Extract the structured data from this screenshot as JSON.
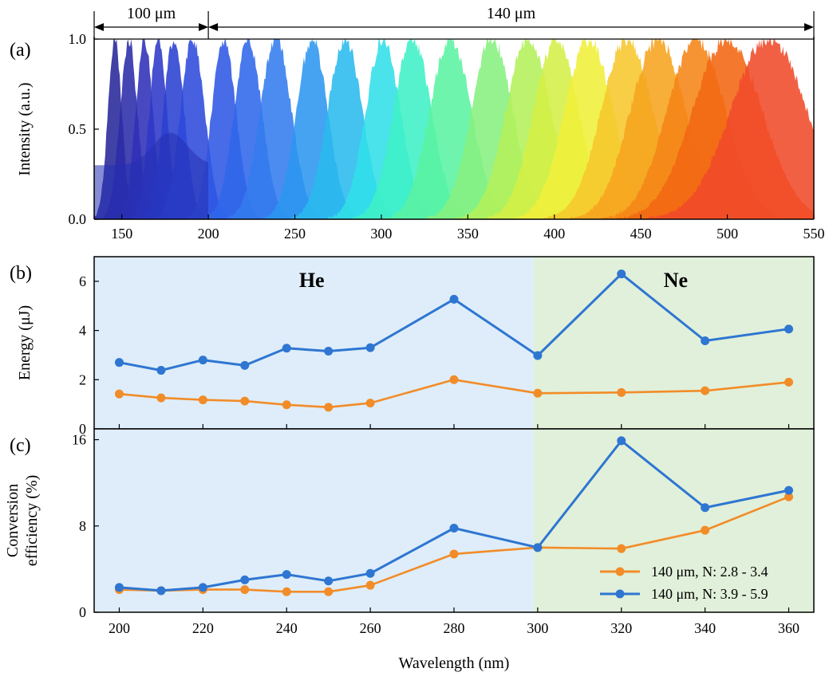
{
  "chart_data": [
    {
      "panel": "(a)",
      "type": "area",
      "ylabel": "Intensity (a.u.)",
      "xlim": [
        134,
        550
      ],
      "ylim": [
        0,
        1.0
      ],
      "xticks": [
        150,
        200,
        250,
        300,
        350,
        400,
        450,
        500,
        550
      ],
      "yticks": [
        "0.0",
        "0.5",
        "1.0"
      ],
      "annotations": [
        {
          "text": "100 μm",
          "from": 134,
          "to": 200
        },
        {
          "text": "140 μm",
          "from": 200,
          "to": 550
        }
      ],
      "peaks": [
        {
          "center": 146,
          "width": 4,
          "color": "#27279a"
        },
        {
          "center": 154,
          "width": 5,
          "color": "#2b2ba8"
        },
        {
          "center": 163,
          "width": 5,
          "color": "#2f30b8"
        },
        {
          "center": 171,
          "width": 5,
          "color": "#2e38c7"
        },
        {
          "center": 180,
          "width": 6,
          "color": "#2a40d2"
        },
        {
          "center": 191,
          "width": 7,
          "color": "#2e4adc"
        },
        {
          "center": 209,
          "width": 7,
          "color": "#2f56e4"
        },
        {
          "center": 223,
          "width": 8,
          "color": "#2f66ea"
        },
        {
          "center": 239,
          "width": 9,
          "color": "#337cee"
        },
        {
          "center": 260,
          "width": 9,
          "color": "#2b96f0"
        },
        {
          "center": 279,
          "width": 10,
          "color": "#2ab9ee"
        },
        {
          "center": 301,
          "width": 10,
          "color": "#31dfe8"
        },
        {
          "center": 318,
          "width": 11,
          "color": "#3ff0c6"
        },
        {
          "center": 340,
          "width": 12,
          "color": "#5af2a2"
        },
        {
          "center": 364,
          "width": 12,
          "color": "#86f080"
        },
        {
          "center": 385,
          "width": 13,
          "color": "#b3f05a"
        },
        {
          "center": 401,
          "width": 13,
          "color": "#d4ef45"
        },
        {
          "center": 420,
          "width": 14,
          "color": "#f0ef3a"
        },
        {
          "center": 442,
          "width": 15,
          "color": "#f6c72c"
        },
        {
          "center": 460,
          "width": 16,
          "color": "#f6a41f"
        },
        {
          "center": 482,
          "width": 17,
          "color": "#f58517"
        },
        {
          "center": 500,
          "width": 20,
          "color": "#f36612"
        },
        {
          "center": 524,
          "width": 22,
          "color": "#f04a2a"
        }
      ]
    },
    {
      "panel": "(b)",
      "type": "line",
      "ylabel": "Energy (μJ)",
      "xlim": [
        194,
        366
      ],
      "ylim": [
        0,
        7
      ],
      "yticks": [
        "0",
        "2",
        "4",
        "6"
      ],
      "regions": [
        {
          "label": "He",
          "from": 194,
          "to": 299,
          "color": "#deedf9"
        },
        {
          "label": "Ne",
          "from": 299,
          "to": 366,
          "color": "#e1f0da"
        }
      ],
      "x": [
        200,
        210,
        220,
        230,
        240,
        250,
        260,
        280,
        300,
        320,
        340,
        360
      ],
      "series": [
        {
          "name": "140 μm, N: 2.8 - 3.4",
          "color": "#f28c28",
          "values": [
            1.42,
            1.26,
            1.18,
            1.13,
            0.98,
            0.88,
            1.05,
            2.0,
            1.45,
            1.48,
            1.55,
            1.9
          ]
        },
        {
          "name": "140 μm, N: 3.9 - 5.9",
          "color": "#2e76d2",
          "values": [
            2.7,
            2.38,
            2.8,
            2.58,
            3.28,
            3.16,
            3.3,
            5.27,
            2.98,
            6.3,
            3.58,
            4.06
          ]
        }
      ]
    },
    {
      "panel": "(c)",
      "type": "line",
      "ylabel": "Conversion efficiency (%)",
      "ylabel_lines": [
        "Conversion",
        "efficiency (%)"
      ],
      "xlabel": "Wavelength (nm)",
      "xlim": [
        194,
        366
      ],
      "ylim": [
        0,
        17
      ],
      "xticks": [
        200,
        220,
        240,
        260,
        280,
        300,
        320,
        340,
        360
      ],
      "yticks": [
        "0",
        "8",
        "16"
      ],
      "x": [
        200,
        210,
        220,
        230,
        240,
        250,
        260,
        280,
        300,
        320,
        340,
        360
      ],
      "series": [
        {
          "name": "140 μm, N: 2.8 - 3.4",
          "color": "#f28c28",
          "values": [
            2.1,
            2.0,
            2.1,
            2.1,
            1.9,
            1.9,
            2.5,
            5.4,
            6.0,
            5.9,
            7.6,
            10.7
          ]
        },
        {
          "name": "140 μm, N: 3.9 - 5.9",
          "color": "#2e76d2",
          "values": [
            2.3,
            2.0,
            2.3,
            3.0,
            3.5,
            2.9,
            3.6,
            7.8,
            6.0,
            15.9,
            9.7,
            11.3
          ]
        }
      ],
      "legend": "bottom-right"
    }
  ]
}
